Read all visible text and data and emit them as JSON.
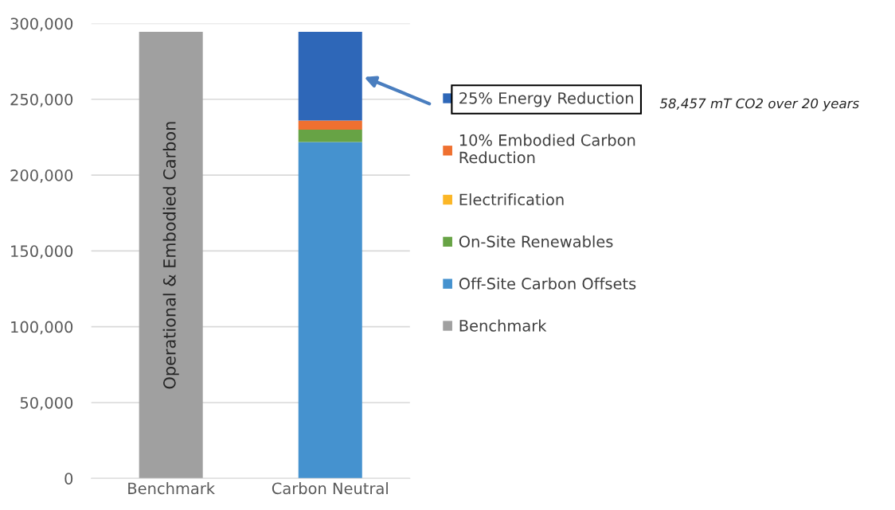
{
  "chart_data": {
    "type": "bar",
    "stacked": true,
    "categories": [
      "Benchmark",
      "Carbon Neutral"
    ],
    "series": [
      {
        "name": "Benchmark",
        "color": "#a0a0a0",
        "values": [
          294500,
          null
        ]
      },
      {
        "name": "Off-Site Carbon Offsets",
        "color": "#4592cf",
        "values": [
          null,
          221800
        ]
      },
      {
        "name": "On-Site Renewables",
        "color": "#67a345",
        "values": [
          null,
          8100
        ]
      },
      {
        "name": "Electrification",
        "color": "#fbb626",
        "values": [
          null,
          0
        ]
      },
      {
        "name": "10% Embodied Carbon\nReduction",
        "color": "#ef7030",
        "values": [
          null,
          6100
        ]
      },
      {
        "name": "25% Energy Reduction",
        "color": "#2e67b8",
        "values": [
          null,
          58500
        ]
      }
    ],
    "ylim": [
      0,
      300000
    ],
    "yticks": [
      {
        "value": 0,
        "label": "0"
      },
      {
        "value": 50000,
        "label": "50,000"
      },
      {
        "value": 100000,
        "label": "100,000"
      },
      {
        "value": 150000,
        "label": "150,000"
      },
      {
        "value": 200000,
        "label": "200,000"
      },
      {
        "value": 250000,
        "label": "250,000"
      },
      {
        "value": 300000,
        "label": "300,000"
      }
    ],
    "grid": "y",
    "legend": "right",
    "annotations": [
      "Operational & Embodied Carbon",
      "58,457 mT CO2 over 20 years"
    ]
  }
}
